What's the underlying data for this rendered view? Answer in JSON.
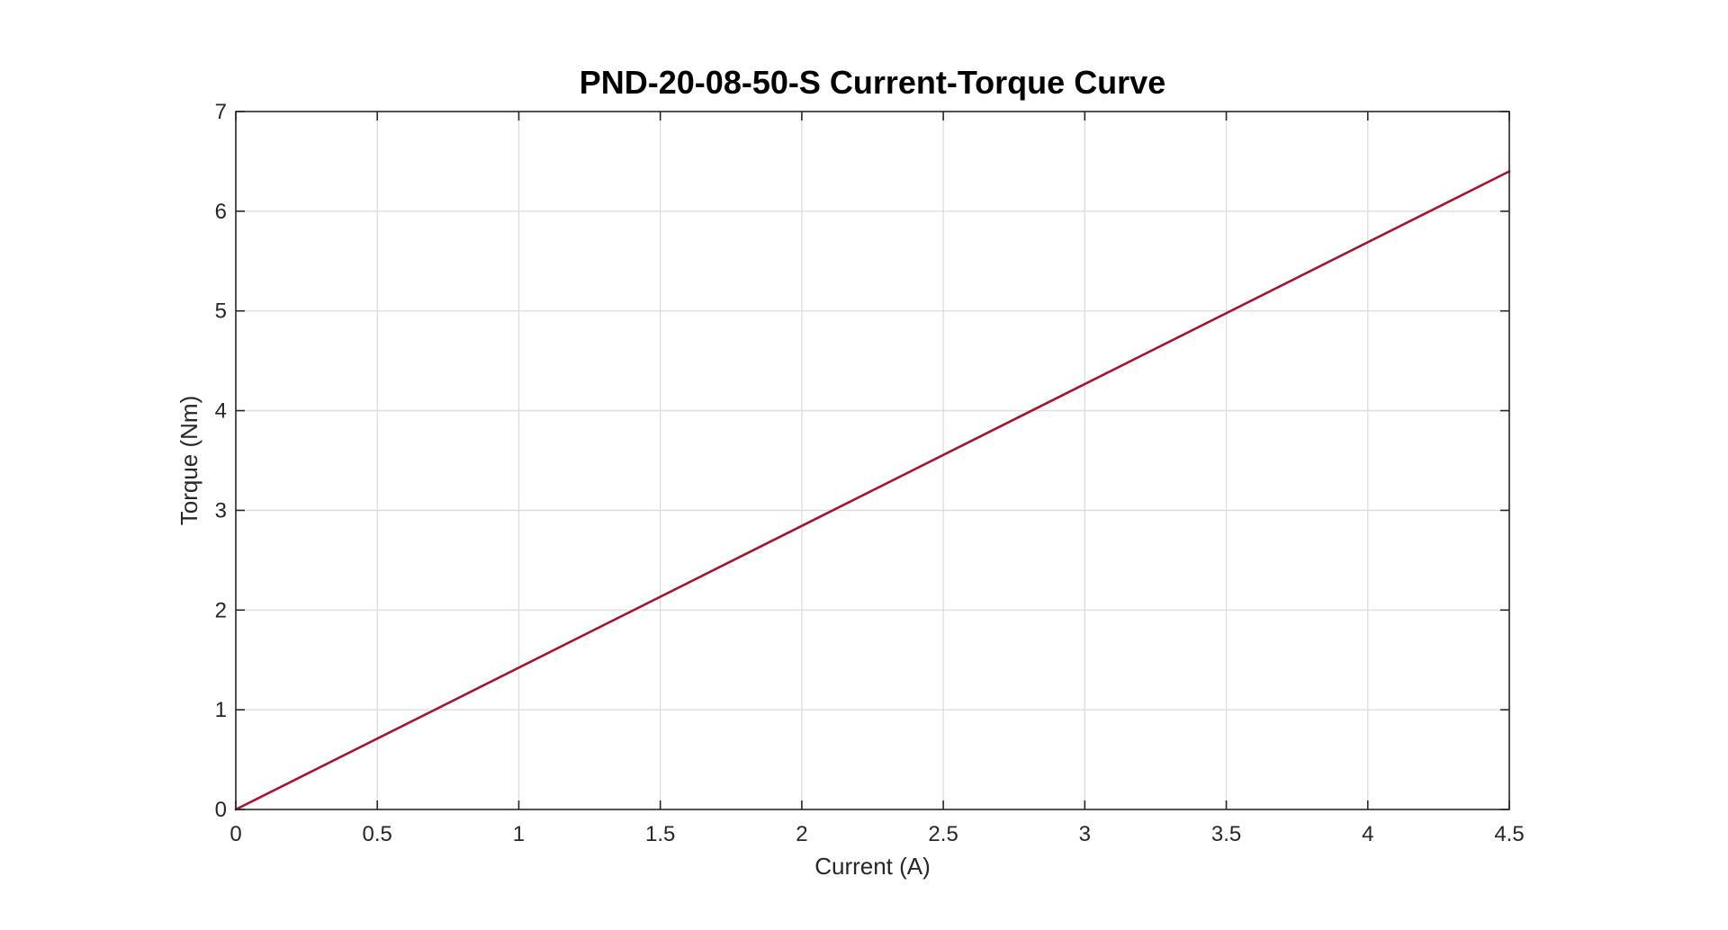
{
  "chart_data": {
    "type": "line",
    "title": "PND-20-08-50-S Current-Torque Curve",
    "xlabel": "Current (A)",
    "ylabel": "Torque (Nm)",
    "xlim": [
      0,
      4.5
    ],
    "ylim": [
      0,
      7
    ],
    "xticks": [
      0,
      0.5,
      1,
      1.5,
      2,
      2.5,
      3,
      3.5,
      4,
      4.5
    ],
    "xtick_labels": [
      "0",
      "0.5",
      "1",
      "1.5",
      "2",
      "2.5",
      "3",
      "3.5",
      "4",
      "4.5"
    ],
    "yticks": [
      0,
      1,
      2,
      3,
      4,
      5,
      6,
      7
    ],
    "ytick_labels": [
      "0",
      "1",
      "2",
      "3",
      "4",
      "5",
      "6",
      "7"
    ],
    "grid": true,
    "legend": "none",
    "series": [
      {
        "x": [
          0,
          4.5
        ],
        "y": [
          0,
          6.4
        ],
        "color": "#A2142F"
      }
    ]
  }
}
